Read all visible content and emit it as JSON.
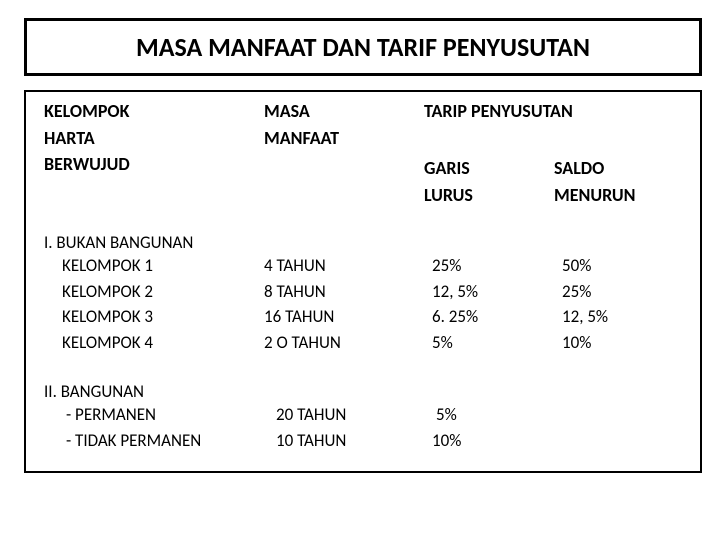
{
  "title": "MASA MANFAAT DAN TARIF PENYUSUTAN",
  "colors": {
    "background": "#ffffff",
    "text": "#000000",
    "border": "#000000"
  },
  "typography": {
    "title_fontsize": 26,
    "header_fontsize": 18,
    "body_fontsize": 17,
    "font_family": "Calibri"
  },
  "table": {
    "headers": {
      "col1_line1": "KELOMPOK",
      "col1_line2": "HARTA",
      "col1_line3": "BERWUJUD",
      "col2_line1": "MASA",
      "col2_line2": "MANFAAT",
      "col3_span": "TARIP PENYUSUTAN",
      "sub3_line1": "GARIS",
      "sub3_line2": "LURUS",
      "sub4_line1": "SALDO",
      "sub4_line2": "MENURUN"
    },
    "sections": [
      {
        "title": "I. BUKAN BANGUNAN",
        "rows": [
          {
            "label": "KELOMPOK 1",
            "masa": "4 TAHUN",
            "garis": "25%",
            "saldo": "50%"
          },
          {
            "label": "KELOMPOK 2",
            "masa": "8 TAHUN",
            "garis": "12, 5%",
            "saldo": "25%"
          },
          {
            "label": "KELOMPOK 3",
            "masa": "16 TAHUN",
            "garis": "6. 25%",
            "saldo": "12, 5%"
          },
          {
            "label": "KELOMPOK 4",
            "masa": "2 O TAHUN",
            "garis": "5%",
            "saldo": "10%"
          }
        ]
      },
      {
        "title": "II. BANGUNAN",
        "rows": [
          {
            "label": "- PERMANEN",
            "masa": "20 TAHUN",
            "garis": "5%",
            "saldo": ""
          },
          {
            "label": "- TIDAK PERMANEN",
            "masa": "10 TAHUN",
            "garis": "10%",
            "saldo": ""
          }
        ]
      }
    ]
  }
}
